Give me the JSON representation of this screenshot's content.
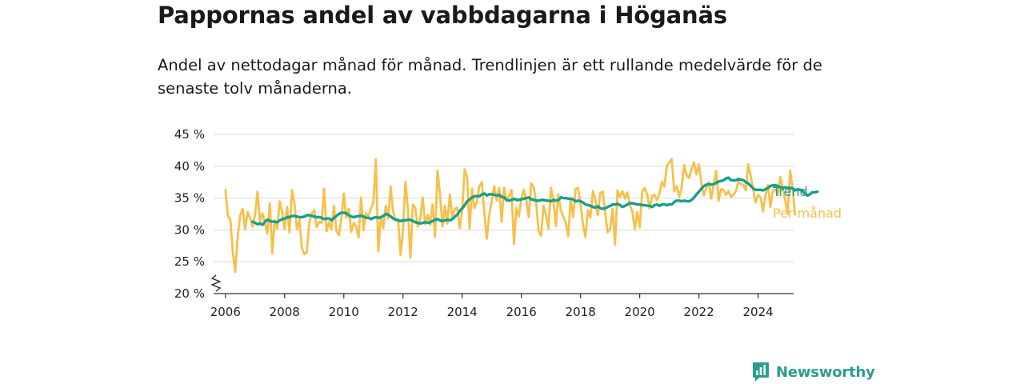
{
  "header": {
    "title": "Pappornas andel av vabbdagarna i Höganäs",
    "subtitle": "Andel av nettodagar månad för månad. Trendlinjen är ett rullande medelvärde för de senaste tolv månaderna."
  },
  "brand": {
    "name": "Newsworthy",
    "icon": "newsworthy-logo-icon",
    "color": "#2a9d8f"
  },
  "chart_data": {
    "type": "line",
    "title": "Pappornas andel av vabbdagarna i Höganäs",
    "subtitle": "Andel av nettodagar månad för månad. Trendlinjen är ett rullande medelvärde för de senaste tolv månaderna.",
    "x_range": [
      2005.6,
      2025.2
    ],
    "ylim": [
      20,
      45
    ],
    "y_ticks": [
      20,
      25,
      30,
      35,
      40,
      45
    ],
    "y_tick_labels": [
      "20 %",
      "25 %",
      "30 %",
      "35 %",
      "40 %",
      "45 %"
    ],
    "x_ticks": [
      2006,
      2008,
      2010,
      2012,
      2014,
      2016,
      2018,
      2020,
      2022,
      2024
    ],
    "x_tick_labels": [
      "2006",
      "2008",
      "2010",
      "2012",
      "2014",
      "2016",
      "2018",
      "2020",
      "2022",
      "2024"
    ],
    "grid": true,
    "axis_break": true,
    "series": [
      {
        "name": "Per månad",
        "color": "#f7c04a",
        "x_start": 2006.0,
        "x_step": 0.0833333,
        "values": [
          36.3,
          32.2,
          31.6,
          26.5,
          23.4,
          29.1,
          32.3,
          33.3,
          30.1,
          32.8,
          31.9,
          30.5,
          32.4,
          36.0,
          31.2,
          32.6,
          31.3,
          29.4,
          34.2,
          26.3,
          31.5,
          30.2,
          34.5,
          32.8,
          30.1,
          33.6,
          29.6,
          36.3,
          34.1,
          30.1,
          31.6,
          27.1,
          26.2,
          26.5,
          31.2,
          32.6,
          33.1,
          30.4,
          31.3,
          31.1,
          36.5,
          29.8,
          31.2,
          30.1,
          33.8,
          29.8,
          29.2,
          31.8,
          35.7,
          31.9,
          33.3,
          29.7,
          31.1,
          30.6,
          28.8,
          35.1,
          30.0,
          32.6,
          32.2,
          33.4,
          34.3,
          41.1,
          26.7,
          32.1,
          30.3,
          33.8,
          31.8,
          36.8,
          32.9,
          31.6,
          31.8,
          26.1,
          29.8,
          37.6,
          33.2,
          25.6,
          34.0,
          33.5,
          30.5,
          31.7,
          35.1,
          30.9,
          32.4,
          30.8,
          34.0,
          28.9,
          39.3,
          35.6,
          30.5,
          33.8,
          31.0,
          35.6,
          31.9,
          33.3,
          33.5,
          30.3,
          33.1,
          39.5,
          38.3,
          30.2,
          36.5,
          33.4,
          34.5,
          36.9,
          37.5,
          32.5,
          28.6,
          32.4,
          34.5,
          36.9,
          34.6,
          36.6,
          31.3,
          36.7,
          34.5,
          35.3,
          36.3,
          27.8,
          33.5,
          32.1,
          34.9,
          36.3,
          34.7,
          32.0,
          37.3,
          36.8,
          34.2,
          29.8,
          29.1,
          33.8,
          32.3,
          30.2,
          36.6,
          34.6,
          30.6,
          35.6,
          33.1,
          32.1,
          31.1,
          29.0,
          34.8,
          32.0,
          36.4,
          36.6,
          34.0,
          30.7,
          28.9,
          33.1,
          31.9,
          36.1,
          34.7,
          32.3,
          35.8,
          36.0,
          32.6,
          29.6,
          30.1,
          33.3,
          27.7,
          36.2,
          35.2,
          36.1,
          34.9,
          35.9,
          33.9,
          32.9,
          30.1,
          32.8,
          30.4,
          36.0,
          36.6,
          35.6,
          33.4,
          35.3,
          35.5,
          34.7,
          35.7,
          37.5,
          36.8,
          40.1,
          40.6,
          41.1,
          36.1,
          36.9,
          35.2,
          36.7,
          40.2,
          38.6,
          38.1,
          39.6,
          40.6,
          38.7,
          40.3,
          37.4,
          35.4,
          36.6,
          37.5,
          34.9,
          37.1,
          39.3,
          34.6,
          36.4,
          36.3,
          35.5,
          36.1,
          35.2,
          35.5,
          36.1,
          37.6,
          37.2,
          37.1,
          36.2,
          40.3,
          38.5,
          36.4,
          34.3,
          35.5,
          35.1,
          32.9,
          35.5,
          37.1,
          33.6,
          36.2,
          36.3,
          35.5,
          38.3,
          36.6,
          34.7,
          32.5,
          39.3,
          36.6,
          32.4
        ]
      },
      {
        "name": "Trend",
        "color": "#1a9e8c",
        "x_start": 2006.92,
        "x_step": 0.0833333,
        "values": [
          31.3,
          31.1,
          30.9,
          31.0,
          30.8,
          31.3,
          31.6,
          31.4,
          31.3,
          31.3,
          31.2,
          31.5,
          31.7,
          31.8,
          32.0,
          32.0,
          32.2,
          32.2,
          32.1,
          32.0,
          32.0,
          32.1,
          32.3,
          32.3,
          32.2,
          32.1,
          32.0,
          32.0,
          31.9,
          31.7,
          31.8,
          31.8,
          31.5,
          31.9,
          32.2,
          32.5,
          32.7,
          32.7,
          32.6,
          32.3,
          32.1,
          32.0,
          32.1,
          32.2,
          32.2,
          32.1,
          31.9,
          31.9,
          31.7,
          31.9,
          32.0,
          31.9,
          32.0,
          32.2,
          32.5,
          32.4,
          32.1,
          31.8,
          31.6,
          31.5,
          31.4,
          31.5,
          31.5,
          31.6,
          31.6,
          31.4,
          31.2,
          31.1,
          31.0,
          31.1,
          31.2,
          31.1,
          31.2,
          31.4,
          31.6,
          31.7,
          31.5,
          31.4,
          31.5,
          31.6,
          31.5,
          31.7,
          32.1,
          32.4,
          33.0,
          33.4,
          33.9,
          34.5,
          34.8,
          35.1,
          35.3,
          35.3,
          35.3,
          35.6,
          35.7,
          35.4,
          35.6,
          35.6,
          35.5,
          35.4,
          35.5,
          35.2,
          35.1,
          34.7,
          34.6,
          34.7,
          34.9,
          34.7,
          34.7,
          34.8,
          34.9,
          35.0,
          35.1,
          34.8,
          34.7,
          34.6,
          34.6,
          34.7,
          34.7,
          34.6,
          34.6,
          34.5,
          34.7,
          34.6,
          34.7,
          35.1,
          35.0,
          35.0,
          34.9,
          34.9,
          34.8,
          34.5,
          34.6,
          34.5,
          34.3,
          34.0,
          33.9,
          33.8,
          33.6,
          33.5,
          33.7,
          33.4,
          33.3,
          33.4,
          33.6,
          33.8,
          34.0,
          34.0,
          34.1,
          33.9,
          33.6,
          33.8,
          34.0,
          34.2,
          34.2,
          34.1,
          34.0,
          34.0,
          33.9,
          33.9,
          33.8,
          33.8,
          33.6,
          33.9,
          34.0,
          33.8,
          34.0,
          34.0,
          33.9,
          34.0,
          34.0,
          34.4,
          34.6,
          34.6,
          34.5,
          34.6,
          34.5,
          34.5,
          34.7,
          35.1,
          35.6,
          36.0,
          36.5,
          36.9,
          37.1,
          37.2,
          37.1,
          37.2,
          37.4,
          37.6,
          37.7,
          37.8,
          38.1,
          38.2,
          37.8,
          37.8,
          37.8,
          38.0,
          37.9,
          37.8,
          37.5,
          37.3,
          36.9,
          36.5,
          36.3,
          36.3,
          36.3,
          36.2,
          36.4,
          36.6,
          36.9,
          37.0,
          37.0,
          36.9,
          36.7,
          36.6,
          36.7,
          36.6,
          36.6,
          36.5,
          36.2,
          36.4,
          36.3,
          36.1,
          35.7,
          35.4,
          35.6,
          35.9,
          35.9,
          36.0
        ]
      }
    ]
  }
}
